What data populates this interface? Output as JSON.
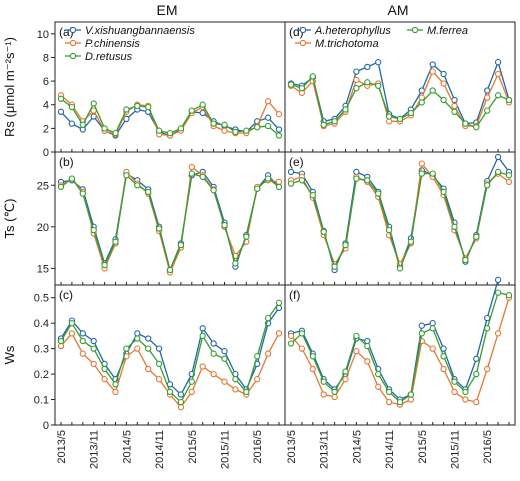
{
  "figure": {
    "column_titles": [
      "EM",
      "AM"
    ],
    "x_tick_labels": [
      "2013/5",
      "2013/11",
      "2014/5",
      "2014/11",
      "2015/5",
      "2015/11",
      "2016/5"
    ]
  },
  "colors": {
    "blue": "#2166ac",
    "orange": "#e8772e",
    "green": "#33a02c"
  },
  "chart_data": [
    {
      "type": "line",
      "panel": "(a)",
      "column": "EM",
      "ylabel": "Rs (μmol m⁻²s⁻¹)",
      "ylim": [
        0,
        11
      ],
      "yticks": [
        0,
        2,
        4,
        6,
        8,
        10
      ],
      "x": [
        "2013/5",
        "2013/7",
        "2013/9",
        "2013/11",
        "2014/1",
        "2014/3",
        "2014/5",
        "2014/7",
        "2014/9",
        "2014/11",
        "2015/1",
        "2015/3",
        "2015/5",
        "2015/7",
        "2015/9",
        "2015/11",
        "2016/1",
        "2016/3",
        "2016/5",
        "2016/7",
        "2016/9"
      ],
      "legend": "top-left",
      "series": [
        {
          "name": "V.xishuangbannaensis",
          "color": "#2166ac",
          "values": [
            3.4,
            2.4,
            1.9,
            3.0,
            1.8,
            1.4,
            2.8,
            3.6,
            3.4,
            1.7,
            1.4,
            1.9,
            3.4,
            3.3,
            2.6,
            2.2,
            1.9,
            1.7,
            2.6,
            2.9,
            1.9
          ]
        },
        {
          "name": "P.chinensis",
          "color": "#e8772e",
          "values": [
            4.8,
            4.0,
            2.6,
            3.5,
            1.8,
            1.5,
            3.4,
            4.0,
            3.9,
            1.5,
            1.4,
            1.8,
            3.3,
            3.8,
            2.2,
            1.8,
            1.6,
            1.6,
            2.2,
            4.3,
            3.2
          ]
        },
        {
          "name": "D.retusus",
          "color": "#33a02c",
          "values": [
            4.5,
            3.8,
            2.3,
            4.1,
            2.0,
            1.6,
            3.6,
            3.9,
            3.8,
            1.8,
            1.6,
            2.0,
            3.5,
            4.0,
            2.4,
            2.3,
            1.7,
            1.8,
            2.1,
            2.2,
            1.4
          ]
        }
      ]
    },
    {
      "type": "line",
      "panel": "(b)",
      "column": "EM",
      "ylabel": "Ts (℃)",
      "ylim": [
        13,
        29
      ],
      "yticks": [
        15,
        20,
        25
      ],
      "x": [
        "2013/5",
        "2013/7",
        "2013/9",
        "2013/11",
        "2014/1",
        "2014/3",
        "2014/5",
        "2014/7",
        "2014/9",
        "2014/11",
        "2015/1",
        "2015/3",
        "2015/5",
        "2015/7",
        "2015/9",
        "2015/11",
        "2016/1",
        "2016/3",
        "2016/5",
        "2016/7",
        "2016/9"
      ],
      "series": [
        {
          "name": "V.xishuangbannaensis",
          "color": "#2166ac",
          "values": [
            25.4,
            25.6,
            24.5,
            20.0,
            15.6,
            18.5,
            26.4,
            25.6,
            24.5,
            20.0,
            14.8,
            18.0,
            26.2,
            26.6,
            24.8,
            20.5,
            15.2,
            19.0,
            24.6,
            26.2,
            24.8
          ]
        },
        {
          "name": "P.chinensis",
          "color": "#e8772e",
          "values": [
            25.0,
            25.8,
            24.2,
            19.2,
            15.0,
            18.0,
            26.6,
            25.2,
            24.0,
            19.5,
            14.5,
            17.5,
            27.2,
            26.2,
            24.5,
            20.0,
            16.5,
            18.2,
            24.8,
            25.6,
            25.4
          ]
        },
        {
          "name": "D.retusus",
          "color": "#33a02c",
          "values": [
            24.8,
            25.8,
            24.0,
            19.6,
            15.4,
            18.2,
            26.2,
            25.0,
            24.2,
            19.8,
            14.8,
            17.8,
            26.4,
            26.0,
            24.4,
            20.2,
            15.6,
            18.8,
            24.6,
            25.8,
            24.8
          ]
        }
      ]
    },
    {
      "type": "line",
      "panel": "(c)",
      "column": "EM",
      "ylabel": "Ws",
      "ylim": [
        0,
        0.55
      ],
      "yticks": [
        0.0,
        0.1,
        0.2,
        0.3,
        0.4,
        0.5
      ],
      "x": [
        "2013/5",
        "2013/7",
        "2013/9",
        "2013/11",
        "2014/1",
        "2014/3",
        "2014/5",
        "2014/7",
        "2014/9",
        "2014/11",
        "2015/1",
        "2015/3",
        "2015/5",
        "2015/7",
        "2015/9",
        "2015/11",
        "2016/1",
        "2016/3",
        "2016/5",
        "2016/7",
        "2016/9"
      ],
      "series": [
        {
          "name": "V.xishuangbannaensis",
          "color": "#2166ac",
          "values": [
            0.34,
            0.41,
            0.36,
            0.33,
            0.24,
            0.18,
            0.28,
            0.36,
            0.34,
            0.3,
            0.16,
            0.12,
            0.2,
            0.38,
            0.32,
            0.29,
            0.2,
            0.14,
            0.24,
            0.4,
            0.46
          ]
        },
        {
          "name": "P.chinensis",
          "color": "#e8772e",
          "values": [
            0.31,
            0.36,
            0.28,
            0.24,
            0.18,
            0.13,
            0.27,
            0.3,
            0.22,
            0.18,
            0.12,
            0.07,
            0.13,
            0.23,
            0.2,
            0.17,
            0.14,
            0.12,
            0.18,
            0.28,
            0.36
          ]
        },
        {
          "name": "D.retusus",
          "color": "#33a02c",
          "values": [
            0.33,
            0.4,
            0.33,
            0.3,
            0.22,
            0.16,
            0.3,
            0.34,
            0.3,
            0.24,
            0.13,
            0.09,
            0.17,
            0.35,
            0.28,
            0.26,
            0.18,
            0.13,
            0.27,
            0.42,
            0.48
          ]
        }
      ]
    },
    {
      "type": "line",
      "panel": "(d)",
      "column": "AM",
      "ylabel": "Rs (μmol m⁻²s⁻¹)",
      "ylim": [
        0,
        11
      ],
      "yticks": [
        0,
        2,
        4,
        6,
        8,
        10
      ],
      "x": [
        "2013/5",
        "2013/7",
        "2013/9",
        "2013/11",
        "2014/1",
        "2014/3",
        "2014/5",
        "2014/7",
        "2014/9",
        "2014/11",
        "2015/1",
        "2015/3",
        "2015/5",
        "2015/7",
        "2015/9",
        "2015/11",
        "2016/1",
        "2016/3",
        "2016/5",
        "2016/7",
        "2016/9"
      ],
      "legend": "top",
      "series": [
        {
          "name": "A.heterophyllus",
          "color": "#2166ac",
          "values": [
            5.8,
            5.6,
            6.3,
            2.6,
            2.8,
            3.9,
            6.8,
            7.2,
            7.6,
            3.2,
            2.8,
            3.6,
            5.2,
            7.4,
            6.6,
            4.4,
            2.4,
            2.5,
            5.2,
            7.6,
            4.4
          ]
        },
        {
          "name": "M.trichotoma",
          "color": "#e8772e",
          "values": [
            5.6,
            5.0,
            6.0,
            2.2,
            2.4,
            3.4,
            6.1,
            5.6,
            5.8,
            2.6,
            2.6,
            3.1,
            4.6,
            6.8,
            5.8,
            3.9,
            2.2,
            2.2,
            4.6,
            6.6,
            4.2
          ]
        },
        {
          "name": "M.ferrea",
          "color": "#33a02c",
          "values": [
            5.7,
            5.4,
            6.4,
            2.3,
            2.6,
            3.6,
            5.4,
            5.9,
            5.6,
            3.0,
            2.8,
            3.3,
            4.2,
            5.2,
            4.4,
            3.4,
            2.4,
            2.1,
            3.5,
            4.8,
            4.4
          ]
        }
      ]
    },
    {
      "type": "line",
      "panel": "(e)",
      "column": "AM",
      "ylabel": "Ts (℃)",
      "ylim": [
        13,
        29
      ],
      "yticks": [
        15,
        20,
        25
      ],
      "x": [
        "2013/5",
        "2013/7",
        "2013/9",
        "2013/11",
        "2014/1",
        "2014/3",
        "2014/5",
        "2014/7",
        "2014/9",
        "2014/11",
        "2015/1",
        "2015/3",
        "2015/5",
        "2015/7",
        "2015/9",
        "2015/11",
        "2016/1",
        "2016/3",
        "2016/5",
        "2016/7",
        "2016/9"
      ],
      "series": [
        {
          "name": "A.heterophyllus",
          "color": "#2166ac",
          "values": [
            26.6,
            26.4,
            24.2,
            19.5,
            14.8,
            18.0,
            26.6,
            26.0,
            24.2,
            20.0,
            15.2,
            18.6,
            26.8,
            26.2,
            24.6,
            20.5,
            15.8,
            19.0,
            25.5,
            28.4,
            26.6
          ]
        },
        {
          "name": "M.trichotoma",
          "color": "#e8772e",
          "values": [
            25.6,
            26.0,
            23.5,
            19.0,
            15.5,
            17.4,
            26.0,
            25.4,
            23.6,
            19.0,
            15.5,
            18.0,
            27.6,
            26.0,
            23.8,
            19.6,
            16.2,
            18.6,
            25.2,
            26.4,
            25.4
          ]
        },
        {
          "name": "M.ferrea",
          "color": "#33a02c",
          "values": [
            25.2,
            25.6,
            23.8,
            19.4,
            15.2,
            17.8,
            25.8,
            25.6,
            24.0,
            19.6,
            15.0,
            18.2,
            26.4,
            26.4,
            24.2,
            20.0,
            16.0,
            18.8,
            25.0,
            26.6,
            26.2
          ]
        }
      ]
    },
    {
      "type": "line",
      "panel": "(f)",
      "column": "AM",
      "ylabel": "Ws",
      "ylim": [
        0,
        0.55
      ],
      "yticks": [
        0.0,
        0.1,
        0.2,
        0.3,
        0.4,
        0.5
      ],
      "x": [
        "2013/5",
        "2013/7",
        "2013/9",
        "2013/11",
        "2014/1",
        "2014/3",
        "2014/5",
        "2014/7",
        "2014/9",
        "2014/11",
        "2015/1",
        "2015/3",
        "2015/5",
        "2015/7",
        "2015/9",
        "2015/11",
        "2016/1",
        "2016/3",
        "2016/5",
        "2016/7",
        "2016/9"
      ],
      "series": [
        {
          "name": "A.heterophyllus",
          "color": "#2166ac",
          "values": [
            0.36,
            0.37,
            0.28,
            0.18,
            0.14,
            0.2,
            0.34,
            0.33,
            0.22,
            0.14,
            0.1,
            0.12,
            0.39,
            0.4,
            0.3,
            0.18,
            0.14,
            0.26,
            0.42,
            0.57,
            null
          ]
        },
        {
          "name": "M.trichotoma",
          "color": "#e8772e",
          "values": [
            0.35,
            0.3,
            0.22,
            0.12,
            0.11,
            0.18,
            0.29,
            0.25,
            0.15,
            0.09,
            0.08,
            0.1,
            0.33,
            0.3,
            0.22,
            0.13,
            0.1,
            0.09,
            0.22,
            0.36,
            0.5
          ]
        },
        {
          "name": "M.ferrea",
          "color": "#33a02c",
          "values": [
            0.32,
            0.36,
            0.27,
            0.17,
            0.13,
            0.21,
            0.35,
            0.31,
            0.2,
            0.13,
            0.09,
            0.12,
            0.36,
            0.38,
            0.27,
            0.17,
            0.13,
            0.2,
            0.38,
            0.52,
            0.51
          ]
        }
      ]
    }
  ]
}
